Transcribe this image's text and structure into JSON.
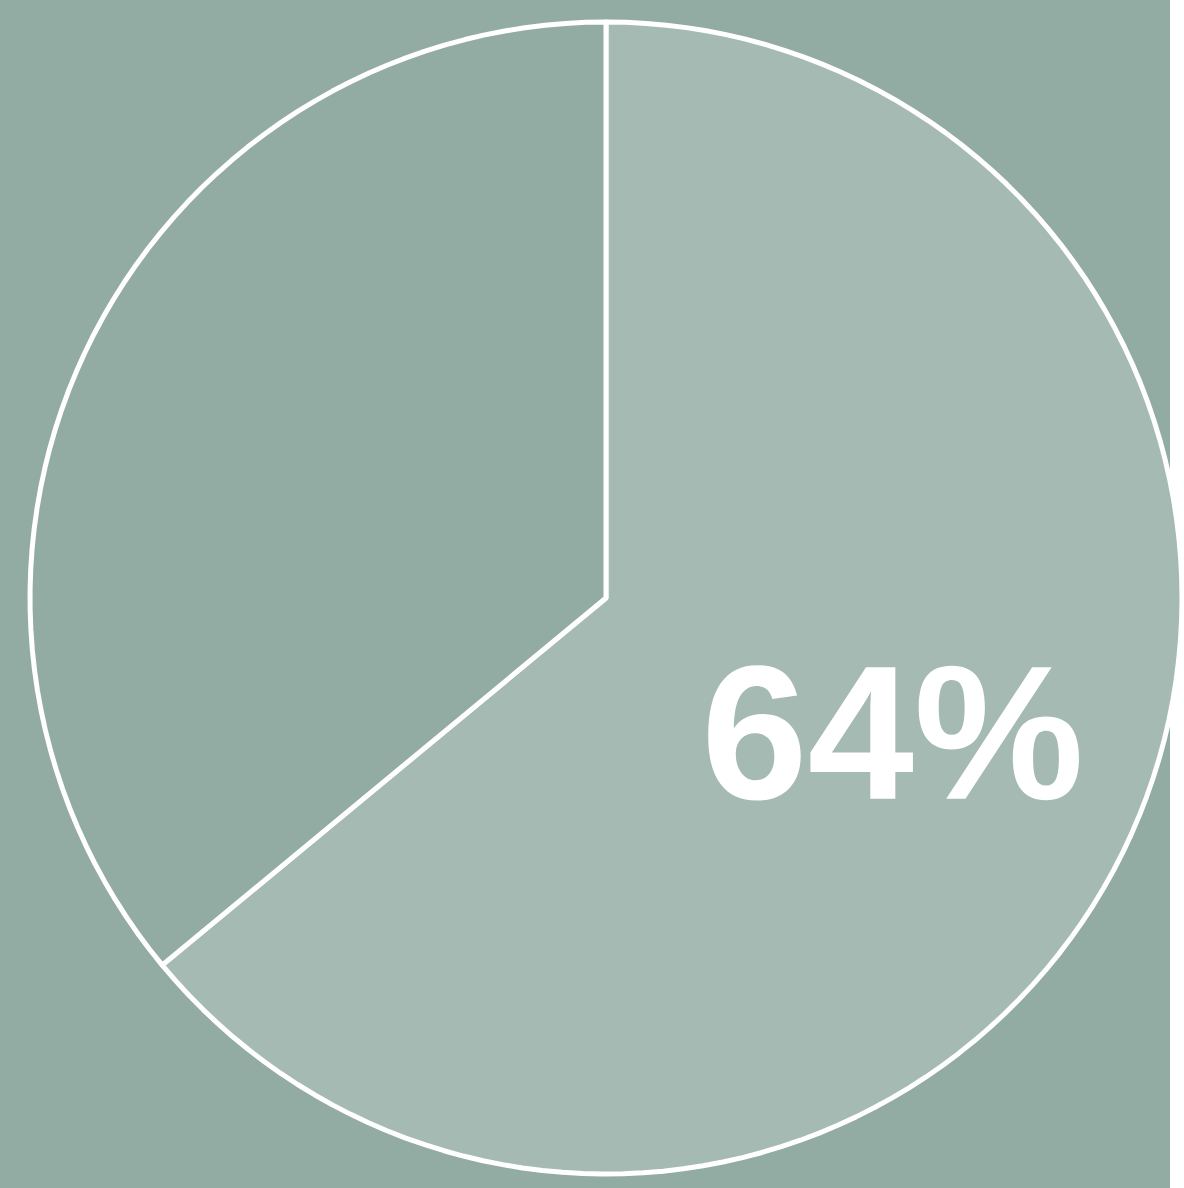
{
  "chart_data": {
    "type": "pie",
    "categories": [
      null,
      null
    ],
    "values": [
      64,
      36
    ],
    "colors": [
      "#a4bab2",
      "#93aca3"
    ],
    "value_labels": [
      "64%",
      null
    ]
  }
}
